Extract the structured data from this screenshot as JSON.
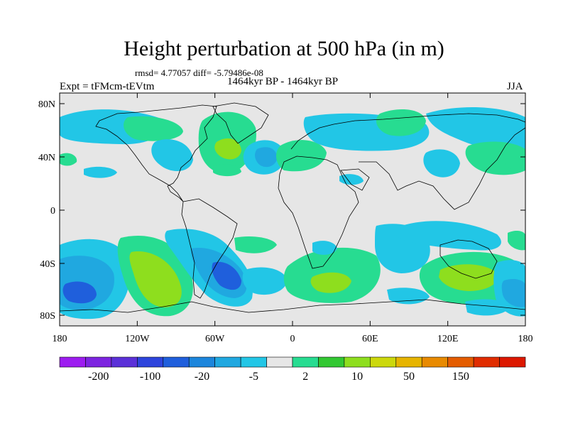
{
  "title": "Height perturbation at 500 hPa (in m)",
  "stats": "rmsd= 4.77057 diff= -5.79486e-08",
  "period": "1464kyr BP - 1464kyr BP",
  "experiment": "Expt = tFMcm-tEVtm",
  "season": "JJA",
  "y_ticks": [
    "80N",
    "40N",
    "0",
    "40S",
    "80S"
  ],
  "x_ticks": [
    "180",
    "120W",
    "60W",
    "0",
    "60E",
    "120E",
    "180"
  ],
  "colorbar": {
    "labels": [
      "-200",
      "-100",
      "-20",
      "-5",
      "2",
      "10",
      "50",
      "150"
    ],
    "colors": [
      "#9d1cf0",
      "#7d24e0",
      "#5b30d8",
      "#2d44dc",
      "#1f5fdc",
      "#1c86dc",
      "#20a8e0",
      "#22c6e6",
      "#e6e6e6",
      "#27dc91",
      "#32c832",
      "#8ede1e",
      "#ccd80c",
      "#e6b400",
      "#e88a00",
      "#e45c00",
      "#e02c00",
      "#dc1800"
    ]
  },
  "palette": {
    "ocean_bg": "#e6e6e6"
  }
}
